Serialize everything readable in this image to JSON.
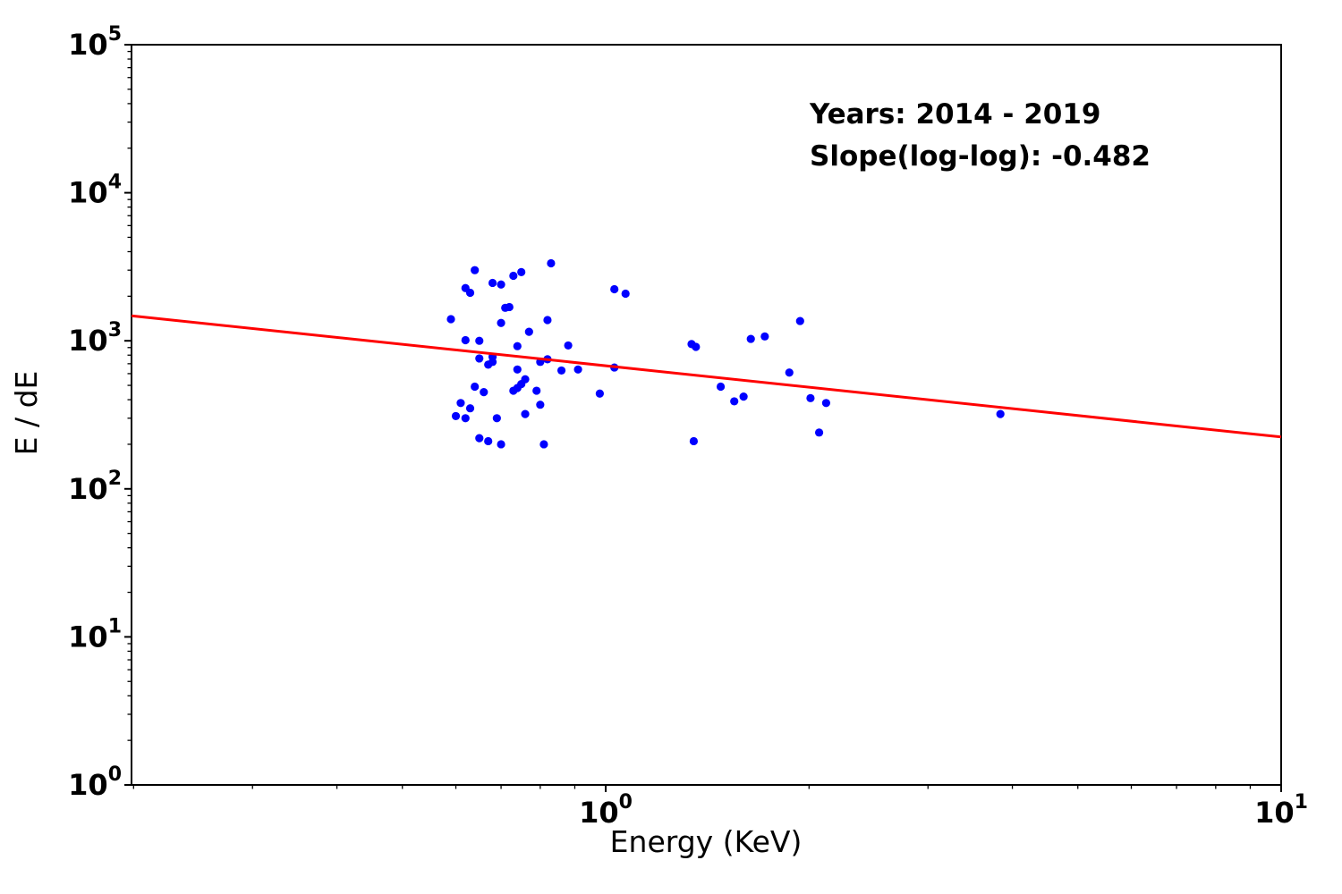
{
  "figure": {
    "background": "#ffffff"
  },
  "chart_data": {
    "type": "scatter",
    "title": "",
    "xlabel": "Energy (KeV)",
    "ylabel": "E / dE",
    "x_scale": "log",
    "y_scale": "log",
    "xlim": [
      0.1986,
      10
    ],
    "ylim": [
      1,
      100000
    ],
    "x_major_ticks": [
      1,
      10
    ],
    "y_major_ticks": [
      1,
      10,
      100,
      1000,
      10000,
      100000
    ],
    "grid": false,
    "legend": "none",
    "annotation": {
      "line1": "Years: 2014 - 2019",
      "line2": "Slope(log-log): -0.482"
    },
    "slope_loglog": -0.482,
    "colors": {
      "points": "#0000ff",
      "fit_line": "#ff0000",
      "axis": "#000000",
      "text": "#000000"
    },
    "points": [
      [
        0.83,
        3340
      ],
      [
        0.64,
        3000
      ],
      [
        0.75,
        2910
      ],
      [
        0.73,
        2750
      ],
      [
        0.68,
        2460
      ],
      [
        0.7,
        2400
      ],
      [
        0.62,
        2270
      ],
      [
        0.63,
        2110
      ],
      [
        1.03,
        2230
      ],
      [
        1.07,
        2080
      ],
      [
        0.71,
        1670
      ],
      [
        0.72,
        1690
      ],
      [
        0.59,
        1400
      ],
      [
        0.7,
        1320
      ],
      [
        0.82,
        1380
      ],
      [
        0.77,
        1150
      ],
      [
        0.62,
        1010
      ],
      [
        0.65,
        1000
      ],
      [
        0.74,
        920
      ],
      [
        0.88,
        930
      ],
      [
        0.65,
        760
      ],
      [
        0.68,
        780
      ],
      [
        0.67,
        690
      ],
      [
        0.68,
        720
      ],
      [
        0.8,
        720
      ],
      [
        0.82,
        750
      ],
      [
        0.86,
        630
      ],
      [
        0.91,
        640
      ],
      [
        1.03,
        660
      ],
      [
        0.74,
        640
      ],
      [
        0.76,
        550
      ],
      [
        0.75,
        510
      ],
      [
        0.74,
        480
      ],
      [
        0.64,
        490
      ],
      [
        0.66,
        450
      ],
      [
        0.73,
        460
      ],
      [
        0.79,
        460
      ],
      [
        0.98,
        440
      ],
      [
        0.61,
        380
      ],
      [
        0.63,
        350
      ],
      [
        0.6,
        310
      ],
      [
        0.62,
        300
      ],
      [
        0.8,
        370
      ],
      [
        0.76,
        320
      ],
      [
        0.69,
        300
      ],
      [
        0.65,
        220
      ],
      [
        0.67,
        210
      ],
      [
        0.7,
        200
      ],
      [
        0.81,
        200
      ],
      [
        1.94,
        1360
      ],
      [
        1.64,
        1030
      ],
      [
        1.72,
        1070
      ],
      [
        1.34,
        950
      ],
      [
        1.36,
        910
      ],
      [
        1.87,
        610
      ],
      [
        1.48,
        490
      ],
      [
        1.55,
        390
      ],
      [
        1.6,
        420
      ],
      [
        2.01,
        410
      ],
      [
        2.12,
        380
      ],
      [
        2.07,
        240
      ],
      [
        1.35,
        210
      ],
      [
        3.84,
        320
      ]
    ],
    "fit_line": {
      "x": [
        0.1986,
        10
      ],
      "y": [
        1476,
        224
      ]
    }
  }
}
